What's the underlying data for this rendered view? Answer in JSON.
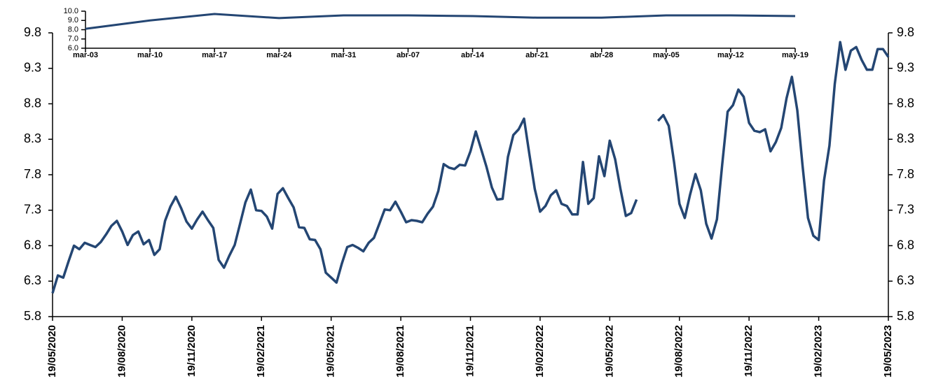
{
  "chart_data": [
    {
      "type": "line",
      "categories": [
        "19/05/2020",
        null,
        null,
        null,
        null,
        null,
        null,
        null,
        null,
        null,
        null,
        null,
        null,
        "19/08/2020",
        null,
        null,
        null,
        null,
        null,
        null,
        null,
        null,
        null,
        null,
        null,
        null,
        "19/11/2020",
        null,
        null,
        null,
        null,
        null,
        null,
        null,
        null,
        null,
        null,
        null,
        null,
        "19/02/2021",
        null,
        null,
        null,
        null,
        null,
        null,
        null,
        null,
        null,
        null,
        null,
        null,
        "19/05/2021",
        null,
        null,
        null,
        null,
        null,
        null,
        null,
        null,
        null,
        null,
        null,
        null,
        "19/08/2021",
        null,
        null,
        null,
        null,
        null,
        null,
        null,
        null,
        null,
        null,
        null,
        null,
        "19/11/2021",
        null,
        null,
        null,
        null,
        null,
        null,
        null,
        null,
        null,
        null,
        null,
        null,
        "19/02/2022",
        null,
        null,
        null,
        null,
        null,
        null,
        null,
        null,
        null,
        null,
        null,
        null,
        "19/05/2022",
        null,
        null,
        null,
        null,
        null,
        null,
        null,
        null,
        null,
        null,
        null,
        null,
        "19/08/2022",
        null,
        null,
        null,
        null,
        null,
        null,
        null,
        null,
        null,
        null,
        null,
        null,
        "19/11/2022",
        null,
        null,
        null,
        null,
        null,
        null,
        null,
        null,
        null,
        null,
        null,
        null,
        "19/02/2023",
        null,
        null,
        null,
        null,
        null,
        null,
        null,
        null,
        null,
        null,
        null,
        null,
        "19/05/2023"
      ],
      "values": [
        6.13,
        6.38,
        6.35,
        6.58,
        6.8,
        6.75,
        6.84,
        6.81,
        6.78,
        6.85,
        6.96,
        7.08,
        7.15,
        7.0,
        6.81,
        6.95,
        7.0,
        6.82,
        6.88,
        6.67,
        6.75,
        7.15,
        7.35,
        7.49,
        7.33,
        7.14,
        7.04,
        7.17,
        7.28,
        7.16,
        7.05,
        6.6,
        6.49,
        6.66,
        6.81,
        7.11,
        7.41,
        7.59,
        7.3,
        7.29,
        7.21,
        7.04,
        7.53,
        7.61,
        7.47,
        7.34,
        7.06,
        7.05,
        6.89,
        6.88,
        6.75,
        6.42,
        6.35,
        6.28,
        6.55,
        6.78,
        6.81,
        6.77,
        6.72,
        6.84,
        6.91,
        7.11,
        7.31,
        7.3,
        7.42,
        7.28,
        7.13,
        7.16,
        7.15,
        7.13,
        7.25,
        7.35,
        7.57,
        7.95,
        7.9,
        7.88,
        7.94,
        7.93,
        8.13,
        8.41,
        8.16,
        7.91,
        7.62,
        7.45,
        7.46,
        8.05,
        8.36,
        8.44,
        8.59,
        8.09,
        7.6,
        7.28,
        7.36,
        7.51,
        7.58,
        7.39,
        7.36,
        7.24,
        7.24,
        7.98,
        7.39,
        7.47,
        8.06,
        7.78,
        8.28,
        8.02,
        7.6,
        7.22,
        7.26,
        7.45,
        null,
        null,
        null,
        8.56,
        8.64,
        8.49,
        7.98,
        7.39,
        7.19,
        7.52,
        7.81,
        7.58,
        7.11,
        6.9,
        7.17,
        7.95,
        8.69,
        8.78,
        9.0,
        8.9,
        8.53,
        8.42,
        8.4,
        8.44,
        8.13,
        8.26,
        8.46,
        8.88,
        9.18,
        8.71,
        7.92,
        7.19,
        6.94,
        6.88,
        7.72,
        8.21,
        9.08,
        9.67,
        9.28,
        9.55,
        9.6,
        9.42,
        9.28,
        9.28,
        9.57,
        9.57,
        9.46
      ],
      "color": "#244673",
      "ylim": [
        5.8,
        9.8
      ],
      "yticks": [
        5.8,
        6.3,
        6.8,
        7.3,
        7.8,
        8.3,
        8.8,
        9.3,
        9.8
      ],
      "y2lim": [
        5.8,
        9.8
      ],
      "y2ticks": [
        5.8,
        6.3,
        6.8,
        7.3,
        7.8,
        8.3,
        8.8,
        9.3,
        9.8
      ]
    },
    {
      "type": "line",
      "categories": [
        "mar-03",
        "mar-10",
        "mar-17",
        "mar-24",
        "mar-31",
        "abr-07",
        "abr-14",
        "abr-21",
        "abr-28",
        "may-05",
        "may-12",
        "may-19"
      ],
      "values": [
        8.1,
        9.0,
        9.7,
        9.25,
        9.55,
        9.55,
        9.47,
        9.3,
        9.3,
        9.55,
        9.55,
        9.47
      ],
      "color": "#244673",
      "ylim": [
        6.0,
        10.0
      ],
      "yticks": [
        {
          "value": 6,
          "label": "6.0"
        },
        {
          "value": 7,
          "label": "7.0"
        },
        {
          "value": 8,
          "label": "8.0"
        },
        {
          "value": 9,
          "label": "9.0"
        },
        {
          "value": 10,
          "label": "10.0"
        }
      ]
    }
  ]
}
